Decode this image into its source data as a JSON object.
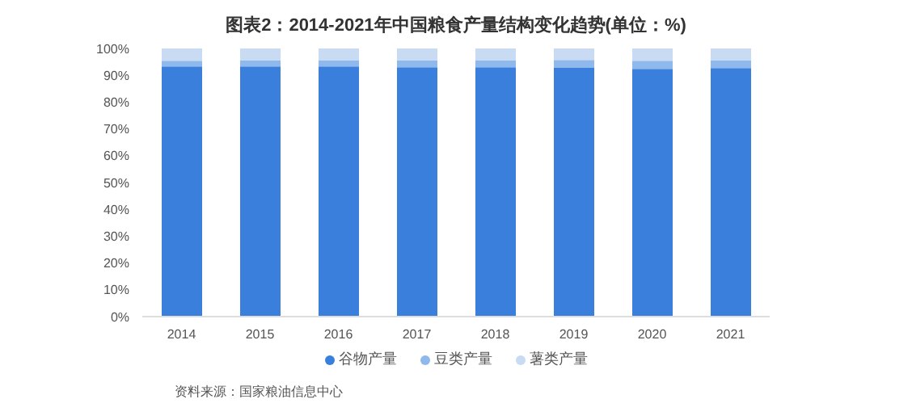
{
  "chart_data": {
    "type": "bar",
    "title": "图表2：2014-2021年中国粮食产量结构变化趋势(单位：%)",
    "stacked": true,
    "categories": [
      "2014",
      "2015",
      "2016",
      "2017",
      "2018",
      "2019",
      "2020",
      "2021"
    ],
    "series": [
      {
        "name": "谷物产量",
        "color": "#3a7fdc",
        "values": [
          93.3,
          93.3,
          93.3,
          93.0,
          93.0,
          92.8,
          92.4,
          92.7
        ]
      },
      {
        "name": "豆类产量",
        "color": "#8fb8ec",
        "values": [
          2.1,
          2.2,
          2.3,
          2.6,
          2.6,
          2.9,
          3.0,
          2.8
        ]
      },
      {
        "name": "薯类产量",
        "color": "#c9dbf3",
        "values": [
          4.6,
          4.5,
          4.4,
          4.4,
          4.4,
          4.3,
          4.6,
          4.5
        ]
      }
    ],
    "ylim": [
      0,
      100
    ],
    "yticks": [
      {
        "value": 0,
        "label": "0%"
      },
      {
        "value": 10,
        "label": "10%"
      },
      {
        "value": 20,
        "label": "20%"
      },
      {
        "value": 30,
        "label": "30%"
      },
      {
        "value": 40,
        "label": "40%"
      },
      {
        "value": 50,
        "label": "50%"
      },
      {
        "value": 60,
        "label": "60%"
      },
      {
        "value": 70,
        "label": "70%"
      },
      {
        "value": 80,
        "label": "80%"
      },
      {
        "value": 90,
        "label": "90%"
      },
      {
        "value": 100,
        "label": "100%"
      }
    ],
    "grid": false,
    "legend": "bottom",
    "annotations": [
      "资料来源：国家粮油信息中心"
    ]
  }
}
